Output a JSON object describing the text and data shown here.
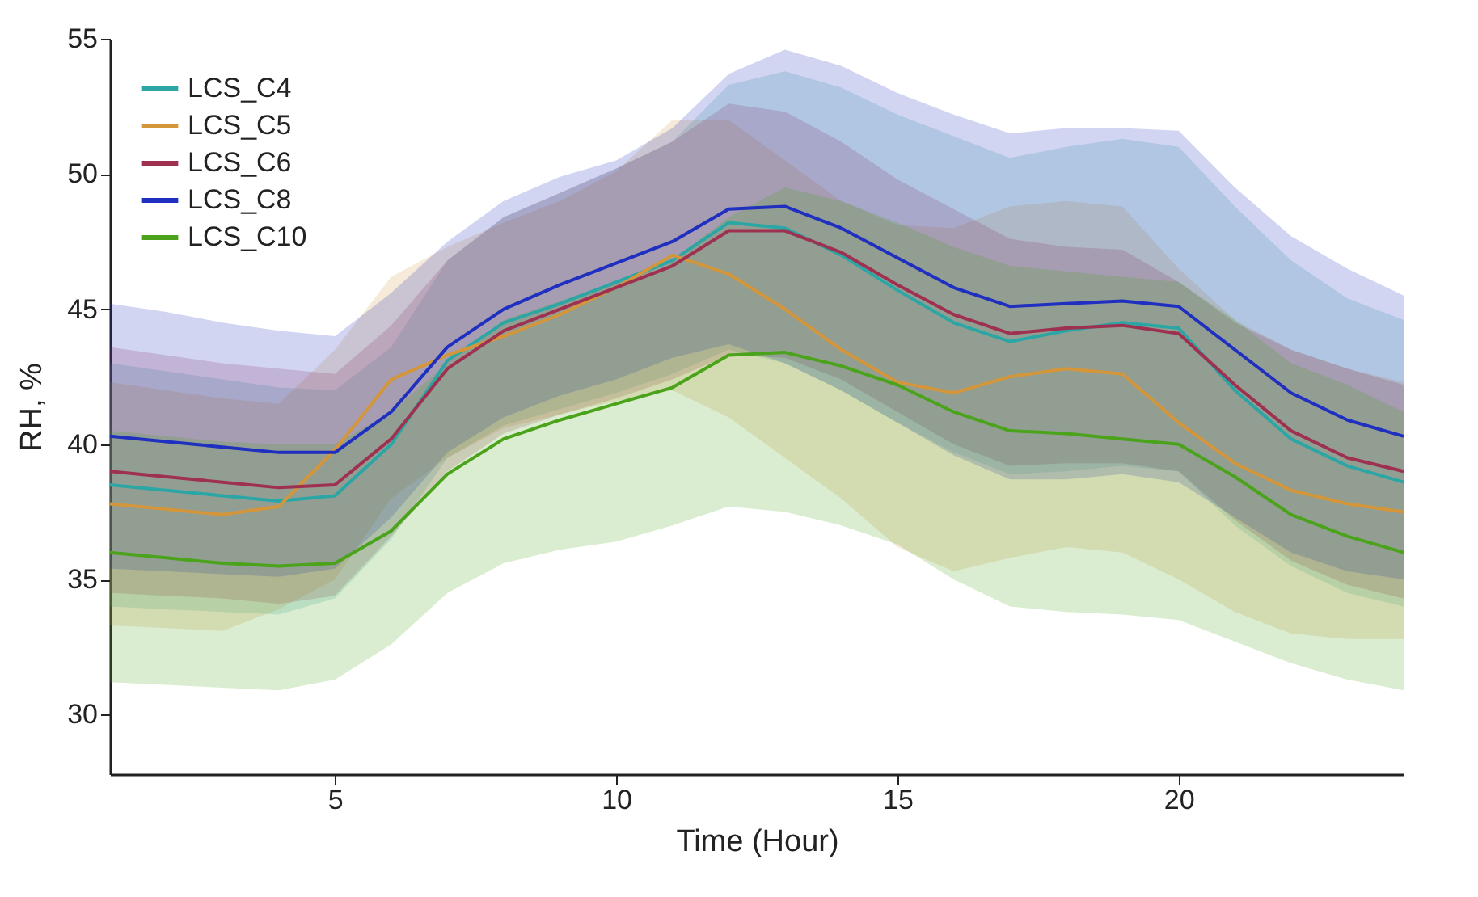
{
  "chart_data": {
    "type": "line",
    "xlabel": "Time (Hour)",
    "ylabel": "RH, %",
    "xlim": [
      1,
      24
    ],
    "ylim": [
      27.8,
      55
    ],
    "xticks": [
      5,
      10,
      15,
      20
    ],
    "yticks": [
      30,
      35,
      40,
      45,
      50,
      55
    ],
    "legend": "top left",
    "x": [
      1,
      2,
      3,
      4,
      5,
      6,
      7,
      8,
      9,
      10,
      11,
      12,
      13,
      14,
      15,
      16,
      17,
      18,
      19,
      20,
      21,
      22,
      23,
      24
    ],
    "series": [
      {
        "name": "LCS_C4",
        "color": "#2ca6a4",
        "values": [
          38.5,
          38.3,
          38.1,
          37.9,
          38.1,
          40.0,
          43.1,
          44.5,
          45.2,
          46.0,
          46.8,
          48.2,
          48.0,
          47.0,
          45.7,
          44.5,
          43.8,
          44.2,
          44.5,
          44.3,
          42.0,
          40.2,
          39.2,
          38.6
        ],
        "lower": [
          34.0,
          33.9,
          33.8,
          33.7,
          34.3,
          36.5,
          39.5,
          40.7,
          41.3,
          41.9,
          42.6,
          43.5,
          43.0,
          42.0,
          40.8,
          39.7,
          38.9,
          39.0,
          39.2,
          39.0,
          37.0,
          35.5,
          34.5,
          34.0
        ],
        "upper": [
          43.0,
          42.7,
          42.4,
          42.1,
          42.0,
          43.6,
          46.8,
          48.4,
          49.3,
          50.2,
          51.2,
          53.3,
          53.8,
          53.2,
          52.2,
          51.4,
          50.6,
          51.0,
          51.3,
          51.0,
          48.8,
          46.8,
          45.4,
          44.6
        ]
      },
      {
        "name": "LCS_C5",
        "color": "#d4963a",
        "values": [
          37.8,
          37.6,
          37.4,
          37.7,
          39.8,
          42.4,
          43.3,
          44.0,
          44.8,
          45.8,
          47.0,
          46.3,
          45.0,
          43.5,
          42.3,
          41.9,
          42.5,
          42.8,
          42.6,
          40.8,
          39.3,
          38.3,
          37.8,
          37.5
        ],
        "lower": [
          33.3,
          33.2,
          33.1,
          33.9,
          35.0,
          38.0,
          39.5,
          40.6,
          41.1,
          41.6,
          42.0,
          41.0,
          39.5,
          38.0,
          36.2,
          35.3,
          35.8,
          36.2,
          36.0,
          35.0,
          33.8,
          33.0,
          32.8,
          32.8
        ],
        "upper": [
          42.3,
          42.0,
          41.7,
          41.5,
          43.5,
          46.2,
          47.3,
          48.2,
          49.0,
          50.1,
          52.0,
          52.0,
          50.5,
          49.0,
          48.1,
          48.0,
          48.8,
          49.0,
          48.8,
          46.5,
          44.6,
          43.5,
          42.8,
          42.3
        ]
      },
      {
        "name": "LCS_C6",
        "color": "#9e3050",
        "values": [
          39.0,
          38.8,
          38.6,
          38.4,
          38.5,
          40.2,
          42.8,
          44.2,
          45.0,
          45.8,
          46.6,
          47.9,
          47.9,
          47.1,
          45.9,
          44.8,
          44.1,
          44.3,
          44.4,
          44.1,
          42.2,
          40.5,
          39.5,
          39.0
        ],
        "lower": [
          34.5,
          34.4,
          34.3,
          34.1,
          34.4,
          36.6,
          39.0,
          40.4,
          41.1,
          41.7,
          42.4,
          43.3,
          43.2,
          42.4,
          41.2,
          40.0,
          39.2,
          39.3,
          39.3,
          39.0,
          37.2,
          35.7,
          34.8,
          34.3
        ],
        "upper": [
          43.6,
          43.3,
          43.0,
          42.8,
          42.6,
          44.4,
          46.8,
          48.4,
          49.3,
          50.2,
          51.2,
          52.6,
          52.3,
          51.2,
          49.8,
          48.7,
          47.6,
          47.3,
          47.2,
          46.0,
          44.5,
          43.5,
          42.8,
          42.2
        ]
      },
      {
        "name": "LCS_C8",
        "color": "#1f2fbf",
        "values": [
          40.3,
          40.1,
          39.9,
          39.7,
          39.7,
          41.2,
          43.6,
          45.0,
          45.9,
          46.7,
          47.5,
          48.7,
          48.8,
          48.0,
          46.9,
          45.8,
          45.1,
          45.2,
          45.3,
          45.1,
          43.5,
          41.9,
          40.9,
          40.3
        ],
        "lower": [
          35.4,
          35.3,
          35.2,
          35.1,
          35.4,
          37.3,
          39.7,
          41.0,
          41.8,
          42.4,
          43.2,
          43.7,
          43.0,
          42.0,
          40.8,
          39.6,
          38.7,
          38.7,
          38.9,
          38.6,
          37.3,
          36.0,
          35.3,
          35.0
        ],
        "upper": [
          45.2,
          44.9,
          44.5,
          44.2,
          44.0,
          45.6,
          47.5,
          49.0,
          49.9,
          50.5,
          51.7,
          53.7,
          54.6,
          54.0,
          53.0,
          52.2,
          51.5,
          51.7,
          51.7,
          51.6,
          49.5,
          47.7,
          46.5,
          45.5
        ]
      },
      {
        "name": "LCS_C10",
        "color": "#4aa31a",
        "values": [
          36.0,
          35.8,
          35.6,
          35.5,
          35.6,
          36.8,
          38.9,
          40.2,
          40.9,
          41.5,
          42.1,
          43.3,
          43.4,
          42.9,
          42.2,
          41.2,
          40.5,
          40.4,
          40.2,
          40.0,
          38.8,
          37.4,
          36.6,
          36.0
        ],
        "lower": [
          31.2,
          31.1,
          31.0,
          30.9,
          31.3,
          32.6,
          34.5,
          35.6,
          36.1,
          36.4,
          37.0,
          37.7,
          37.5,
          37.0,
          36.3,
          35.0,
          34.0,
          33.8,
          33.7,
          33.5,
          32.7,
          31.9,
          31.3,
          30.9
        ],
        "upper": [
          40.5,
          40.3,
          40.1,
          40.0,
          40.0,
          41.2,
          43.0,
          44.6,
          45.3,
          46.0,
          46.8,
          48.4,
          49.5,
          49.0,
          48.2,
          47.3,
          46.6,
          46.4,
          46.2,
          46.0,
          44.6,
          43.0,
          42.2,
          41.2
        ]
      }
    ]
  }
}
